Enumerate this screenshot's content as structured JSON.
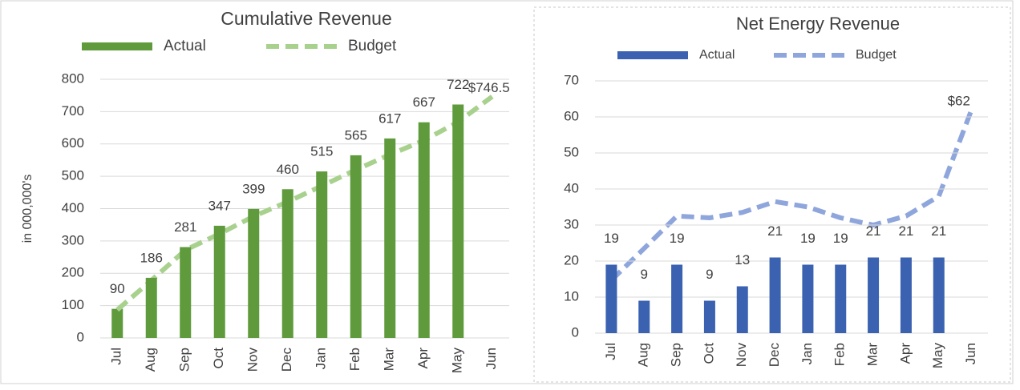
{
  "chart_data": [
    {
      "type": "combo",
      "title": "Cumulative Revenue",
      "y_label": "in 000,000's",
      "categories": [
        "Jul",
        "Aug",
        "Sep",
        "Oct",
        "Nov",
        "Dec",
        "Jan",
        "Feb",
        "Mar",
        "Apr",
        "May",
        "Jun"
      ],
      "series": [
        {
          "name": "Actual",
          "type": "bar",
          "color": "#5f9a3c",
          "values": [
            90,
            186,
            281,
            347,
            399,
            460,
            515,
            565,
            617,
            667,
            722,
            null
          ]
        },
        {
          "name": "Budget",
          "type": "line",
          "line_style": "dashed",
          "color": "#a9d18e",
          "values": [
            87,
            178,
            272,
            322,
            376,
            421,
            470,
            520,
            567,
            611,
            668,
            746.5
          ],
          "value_labels": [
            null,
            null,
            null,
            null,
            null,
            null,
            null,
            null,
            null,
            null,
            null,
            "$746.5"
          ]
        }
      ],
      "ylim": [
        0,
        800
      ],
      "yticks": [
        0,
        100,
        200,
        300,
        400,
        500,
        600,
        700,
        800
      ],
      "grid": true,
      "legend": "top"
    },
    {
      "type": "combo",
      "title": "Net Energy Revenue",
      "categories": [
        "Jul",
        "Aug",
        "Sep",
        "Oct",
        "Nov",
        "Dec",
        "Jan",
        "Feb",
        "Mar",
        "Apr",
        "May",
        "Jun"
      ],
      "series": [
        {
          "name": "Actual",
          "type": "bar",
          "color": "#3a62b0",
          "values": [
            19,
            9,
            19,
            9,
            13,
            21,
            19,
            19,
            21,
            21,
            21,
            null
          ]
        },
        {
          "name": "Budget",
          "type": "line",
          "line_style": "dashed",
          "color": "#8fa6dc",
          "values": [
            14.7,
            23.5,
            32.5,
            32,
            33.5,
            36.5,
            35,
            32,
            30,
            32.5,
            38,
            62
          ],
          "value_labels": [
            null,
            null,
            null,
            null,
            null,
            null,
            null,
            null,
            null,
            null,
            null,
            "$62"
          ]
        }
      ],
      "ylim": [
        0,
        70
      ],
      "yticks": [
        0,
        10,
        20,
        30,
        40,
        50,
        60,
        70
      ],
      "grid": true,
      "legend": "top"
    }
  ]
}
